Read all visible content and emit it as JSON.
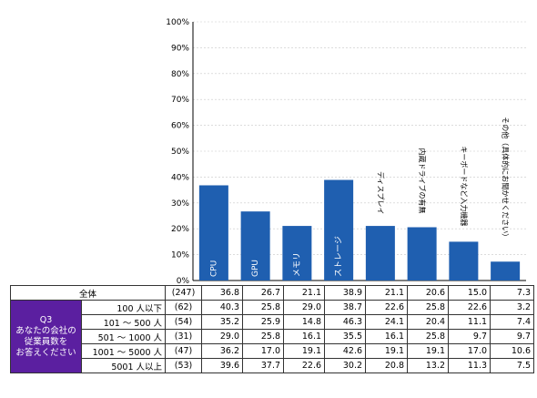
{
  "chart_data": {
    "type": "bar",
    "categories": [
      "CPU",
      "GPU",
      "メモリ",
      "ストレージ",
      "ディスプレイ",
      "内蔵ドライブの有無",
      "キーボードなど入力機器",
      "その他（具体的にお聞かせください）"
    ],
    "values": [
      36.8,
      26.7,
      21.1,
      38.9,
      21.1,
      20.6,
      15.0,
      7.3
    ],
    "ylim": [
      0,
      100
    ],
    "yticks": [
      "0%",
      "10%",
      "20%",
      "30%",
      "40%",
      "50%",
      "60%",
      "70%",
      "80%",
      "90%",
      "100%"
    ],
    "grid": true,
    "bar_color": "#1f5fb0",
    "header_color": "#5b1fa0"
  },
  "table": {
    "question": [
      "Q3",
      "あなたの会社の",
      "従業員数を",
      "お答えください"
    ],
    "rows": [
      {
        "label": "全体",
        "n": "(247)",
        "values": [
          "36.8",
          "26.7",
          "21.1",
          "38.9",
          "21.1",
          "20.6",
          "15.0",
          "7.3"
        ]
      },
      {
        "label": "100 人以下",
        "n": "(62)",
        "values": [
          "40.3",
          "25.8",
          "29.0",
          "38.7",
          "22.6",
          "25.8",
          "22.6",
          "3.2"
        ]
      },
      {
        "label": "101 ～ 500 人",
        "n": "(54)",
        "values": [
          "35.2",
          "25.9",
          "14.8",
          "46.3",
          "24.1",
          "20.4",
          "11.1",
          "7.4"
        ]
      },
      {
        "label": "501 ～ 1000 人",
        "n": "(31)",
        "values": [
          "29.0",
          "25.8",
          "16.1",
          "35.5",
          "16.1",
          "25.8",
          "9.7",
          "9.7"
        ]
      },
      {
        "label": "1001 ～ 5000 人",
        "n": "(47)",
        "values": [
          "36.2",
          "17.0",
          "19.1",
          "42.6",
          "19.1",
          "19.1",
          "17.0",
          "10.6"
        ]
      },
      {
        "label": "5001 人以上",
        "n": "(53)",
        "values": [
          "39.6",
          "37.7",
          "22.6",
          "30.2",
          "20.8",
          "13.2",
          "11.3",
          "7.5"
        ]
      }
    ]
  }
}
